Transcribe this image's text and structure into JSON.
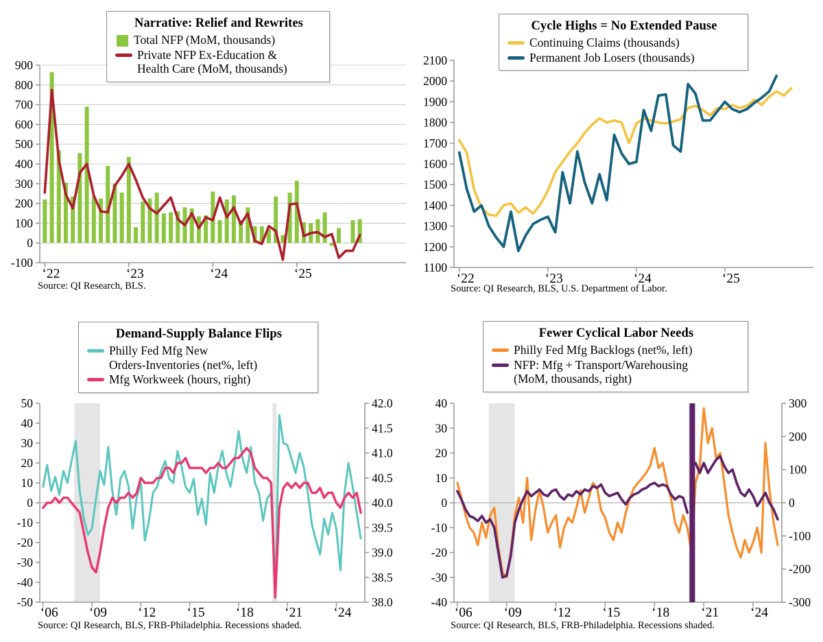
{
  "page": {
    "background": "#FFFFFF",
    "grid_color": "#CDCDCD",
    "axis_color": "#9A9A9A",
    "zero_line_color": "#BDBDBD",
    "recession_color": "#E5E5E5"
  },
  "chart_data": [
    {
      "id": "c1",
      "type": "bar",
      "title": "Narrative: Relief and Rewrites",
      "source": "Source: QI Research, BLS.",
      "legend": [
        {
          "marker": "square",
          "color": "#8CC540",
          "lines": [
            "Total NFP (MoM, thousands)"
          ]
        },
        {
          "marker": "line",
          "color": "#AC1F2D",
          "lines": [
            "Private NFP Ex-Education &",
            "Health Care (MoM, thousands)"
          ]
        }
      ],
      "xlim": [
        2021.94,
        2026.3
      ],
      "ylim": [
        -100,
        900
      ],
      "y_ticks": [
        900,
        800,
        700,
        600,
        500,
        400,
        300,
        200,
        100,
        0,
        -100
      ],
      "x_ticks": [
        {
          "v": 2022,
          "label": "‘22"
        },
        {
          "v": 2023,
          "label": "‘23"
        },
        {
          "v": 2024,
          "label": "‘24"
        },
        {
          "v": 2025,
          "label": "‘25"
        }
      ],
      "gridlines": "all",
      "recessions": [],
      "series": [
        {
          "name": "Total NFP (MoM, thousands)",
          "type": "bar",
          "axis": "left",
          "color": "#8CC540",
          "start": 2022.0,
          "step": 0.083333,
          "values": [
            220,
            865,
            470,
            305,
            235,
            455,
            690,
            235,
            225,
            390,
            300,
            255,
            435,
            80,
            210,
            225,
            255,
            150,
            155,
            160,
            180,
            175,
            135,
            140,
            260,
            115,
            220,
            240,
            115,
            180,
            85,
            85,
            70,
            235,
            40,
            255,
            315,
            105,
            100,
            120,
            155,
            -15,
            75,
            0,
            115,
            120
          ]
        },
        {
          "name": "Private NFP Ex-Education & Health Care (MoM, thousands)",
          "type": "line",
          "axis": "left",
          "color": "#AC1F2D",
          "width": 3.6,
          "start": 2022.0,
          "step": 0.083333,
          "values": [
            255,
            775,
            420,
            245,
            175,
            355,
            400,
            240,
            160,
            155,
            290,
            340,
            400,
            320,
            230,
            175,
            150,
            190,
            230,
            120,
            90,
            150,
            75,
            130,
            115,
            230,
            130,
            180,
            95,
            150,
            10,
            -5,
            85,
            60,
            -85,
            195,
            200,
            35,
            50,
            55,
            30,
            45,
            -75,
            -40,
            -40,
            40
          ]
        }
      ]
    },
    {
      "id": "c2",
      "type": "line",
      "title": "Cycle Highs = No Extended Pause",
      "source": "Source: QI Research, BLS, U.S. Department of Labor.",
      "legend": [
        {
          "marker": "line",
          "color": "#F5C342",
          "lines": [
            "Continuing Claims (thousands)"
          ]
        },
        {
          "marker": "line",
          "color": "#16627E",
          "lines": [
            "Permanent Job Losers (thousands)"
          ]
        }
      ],
      "xlim": [
        2021.94,
        2026.0
      ],
      "ylim": [
        1100,
        2100
      ],
      "y_ticks": [
        2100,
        2000,
        1900,
        1800,
        1700,
        1600,
        1500,
        1400,
        1300,
        1200,
        1100
      ],
      "x_ticks": [
        {
          "v": 2022,
          "label": "‘22"
        },
        {
          "v": 2023,
          "label": "‘23"
        },
        {
          "v": 2024,
          "label": "‘24"
        },
        {
          "v": 2025,
          "label": "‘25"
        }
      ],
      "gridlines": "none",
      "recessions": [],
      "series": [
        {
          "name": "Continuing Claims (thousands)",
          "type": "line",
          "axis": "left",
          "color": "#F5C342",
          "width": 3.6,
          "start": 2022.0,
          "step": 0.083333,
          "values": [
            1715,
            1655,
            1475,
            1390,
            1355,
            1350,
            1400,
            1410,
            1365,
            1390,
            1360,
            1405,
            1470,
            1560,
            1610,
            1660,
            1700,
            1750,
            1790,
            1820,
            1800,
            1810,
            1800,
            1700,
            1795,
            1820,
            1810,
            1800,
            1795,
            1805,
            1815,
            1870,
            1880,
            1860,
            1835,
            1870,
            1865,
            1885,
            1870,
            1880,
            1910,
            1885,
            1925,
            1950,
            1930,
            1965
          ]
        },
        {
          "name": "Permanent Job Losers (thousands)",
          "type": "line",
          "axis": "left",
          "color": "#16627E",
          "width": 3.8,
          "start": 2022.0,
          "step": 0.083333,
          "values": [
            1655,
            1480,
            1370,
            1400,
            1300,
            1245,
            1200,
            1370,
            1180,
            1255,
            1310,
            1330,
            1345,
            1270,
            1560,
            1410,
            1660,
            1510,
            1410,
            1550,
            1425,
            1740,
            1650,
            1600,
            1610,
            1860,
            1760,
            1930,
            1935,
            1690,
            1660,
            1985,
            1940,
            1810,
            1810,
            1855,
            1900,
            1865,
            1850,
            1865,
            1895,
            1920,
            1950,
            2025,
            null,
            null
          ]
        }
      ]
    },
    {
      "id": "c3",
      "type": "line",
      "title": "Demand-Supply Balance Flips",
      "source": "Source: QI Research, BLS, FRB-Philadelphia. Recessions shaded.",
      "legend": [
        {
          "marker": "line",
          "color": "#5BC6BE",
          "lines": [
            "Philly Fed Mfg New",
            "Orders-Inventories (net%, left)"
          ]
        },
        {
          "marker": "line",
          "color": "#E8396F",
          "lines": [
            "Mfg Workweek (hours, right)"
          ]
        }
      ],
      "xlim": [
        2005.8,
        2025.75
      ],
      "ylim": [
        -50,
        50
      ],
      "ylim_right": [
        38.0,
        42.0
      ],
      "y_ticks": [
        50,
        40,
        30,
        20,
        10,
        0,
        -10,
        -20,
        -30,
        -40,
        -50
      ],
      "y_ticks_right": [
        "42.0",
        "41.5",
        "41.0",
        "40.5",
        "40.0",
        "39.5",
        "39.0",
        "38.5",
        "38.0"
      ],
      "x_ticks": [
        {
          "v": 2006,
          "label": "‘06"
        },
        {
          "v": 2009,
          "label": "‘09"
        },
        {
          "v": 2012,
          "label": "‘12"
        },
        {
          "v": 2015,
          "label": "‘15"
        },
        {
          "v": 2018,
          "label": "‘18"
        },
        {
          "v": 2021,
          "label": "‘21"
        },
        {
          "v": 2024,
          "label": "‘24"
        }
      ],
      "gridlines": "zero",
      "recessions": [
        [
          2007.92,
          2009.5
        ],
        [
          2020.08,
          2020.33
        ]
      ],
      "series": [
        {
          "name": "Philly Fed Mfg New Orders-Inventories (net%, left)",
          "type": "line",
          "axis": "left",
          "color": "#5BC6BE",
          "width": 3.0,
          "start": 2006.0,
          "step": 0.25,
          "values": [
            8,
            19,
            6,
            13,
            4,
            16,
            10,
            21,
            31,
            6,
            -8,
            -16,
            -13,
            2,
            16,
            9,
            28,
            6,
            -6,
            12,
            16,
            8,
            -13,
            3,
            10,
            -19,
            -9,
            5,
            8,
            16,
            21,
            12,
            10,
            26,
            18,
            8,
            5,
            12,
            -6,
            2,
            -11,
            15,
            5,
            18,
            26,
            15,
            8,
            20,
            36,
            22,
            15,
            28,
            10,
            5,
            -9,
            2,
            5,
            -48,
            44,
            30,
            29,
            22,
            15,
            25,
            18,
            5,
            -11,
            -19,
            -26,
            -8,
            -16,
            -5,
            -13,
            -34,
            5,
            20,
            8,
            -5,
            -18
          ]
        },
        {
          "name": "Mfg Workweek (hours, right)",
          "type": "line",
          "axis": "right",
          "color": "#E8396F",
          "width": 3.4,
          "start": 2006.0,
          "step": 0.25,
          "values": [
            39.9,
            40.0,
            40.0,
            40.1,
            40.0,
            40.1,
            40.1,
            40.0,
            39.9,
            39.8,
            39.4,
            39.0,
            38.7,
            38.6,
            39.0,
            39.5,
            39.9,
            40.1,
            40.0,
            40.1,
            40.1,
            40.2,
            40.1,
            40.2,
            40.5,
            40.4,
            40.4,
            40.4,
            40.5,
            40.5,
            40.7,
            40.7,
            40.6,
            40.8,
            40.8,
            40.9,
            40.7,
            40.7,
            40.7,
            40.7,
            40.6,
            40.7,
            40.7,
            40.8,
            40.7,
            40.7,
            40.8,
            40.9,
            40.9,
            41.0,
            41.1,
            41.0,
            40.7,
            40.6,
            40.5,
            40.5,
            40.4,
            38.1,
            39.9,
            40.3,
            40.4,
            40.3,
            40.4,
            40.3,
            40.4,
            40.4,
            40.2,
            40.2,
            40.3,
            40.1,
            40.2,
            40.2,
            40.0,
            39.9,
            40.1,
            40.2,
            40.1,
            40.2,
            39.8
          ]
        }
      ]
    },
    {
      "id": "c4",
      "type": "line",
      "title": "Fewer Cyclical Labor Needs",
      "source": "Source: QI Research, BLS, FRB-Philadelphia. Recessions shaded.",
      "legend": [
        {
          "marker": "line",
          "color": "#F68D2E",
          "lines": [
            "Philly Fed Mfg Backlogs (net%, left)"
          ]
        },
        {
          "marker": "line",
          "color": "#5E2366",
          "lines": [
            "NFP: Mfg + Transport/Warehousing",
            "(MoM, thousands, right)"
          ]
        }
      ],
      "xlim": [
        2005.8,
        2025.75
      ],
      "ylim": [
        -40,
        40
      ],
      "ylim_right": [
        -300,
        300
      ],
      "y_ticks": [
        40,
        30,
        20,
        10,
        0,
        -10,
        -20,
        -30,
        -40
      ],
      "y_ticks_right": [
        "300",
        "200",
        "100",
        "0",
        "-100",
        "-200",
        "-300"
      ],
      "x_ticks": [
        {
          "v": 2006,
          "label": "‘06"
        },
        {
          "v": 2009,
          "label": "‘09"
        },
        {
          "v": 2012,
          "label": "‘12"
        },
        {
          "v": 2015,
          "label": "‘15"
        },
        {
          "v": 2018,
          "label": "‘18"
        },
        {
          "v": 2021,
          "label": "‘21"
        },
        {
          "v": 2024,
          "label": "‘24"
        }
      ],
      "gridlines": "zero",
      "recessions": [
        [
          2007.92,
          2009.5
        ],
        [
          2020.08,
          2020.33
        ]
      ],
      "series": [
        {
          "name": "Philly Fed Mfg Backlogs (net%, left)",
          "type": "line",
          "axis": "left",
          "color": "#F68D2E",
          "width": 3.2,
          "start": 2006.0,
          "step": 0.25,
          "values": [
            8,
            2,
            -5,
            -10,
            -12,
            -17,
            -8,
            -14,
            -5,
            -2,
            -18,
            -28,
            -30,
            -20,
            -5,
            2,
            -8,
            10,
            -15,
            -3,
            5,
            -2,
            -12,
            -8,
            -5,
            -18,
            -10,
            -6,
            -8,
            -2,
            5,
            -4,
            2,
            8,
            6,
            -3,
            -6,
            -12,
            -15,
            -8,
            -12,
            -4,
            2,
            6,
            8,
            10,
            12,
            15,
            22,
            14,
            16,
            8,
            2,
            -8,
            -12,
            -5,
            -10,
            -20,
            8,
            14,
            38,
            24,
            30,
            18,
            20,
            8,
            -5,
            -12,
            -18,
            -22,
            -15,
            -20,
            -16,
            -10,
            -20,
            24,
            5,
            -8,
            -17
          ]
        },
        {
          "name": "NFP: Mfg + Transport/Warehousing (MoM, thousands, right)",
          "type": "line",
          "axis": "right",
          "color": "#5E2366",
          "width": 3.6,
          "start": 2006.0,
          "step": 0.25,
          "offscale_spike": {
            "x": 2020.3,
            "down_to": -1500,
            "up_to": 330,
            "clipped_to_axis": true
          },
          "values": [
            35,
            10,
            -20,
            -40,
            -45,
            -55,
            -40,
            -60,
            -50,
            -75,
            -150,
            -225,
            -220,
            -160,
            -60,
            -20,
            10,
            35,
            20,
            30,
            40,
            25,
            20,
            35,
            40,
            20,
            10,
            25,
            20,
            35,
            25,
            40,
            35,
            50,
            45,
            55,
            30,
            20,
            25,
            30,
            10,
            -5,
            15,
            25,
            30,
            40,
            45,
            55,
            60,
            50,
            55,
            50,
            25,
            10,
            20,
            15,
            -30,
            null,
            120,
            90,
            120,
            90,
            110,
            130,
            140,
            110,
            90,
            100,
            60,
            30,
            20,
            40,
            20,
            -10,
            10,
            30,
            0,
            -20,
            -50
          ]
        }
      ]
    }
  ]
}
